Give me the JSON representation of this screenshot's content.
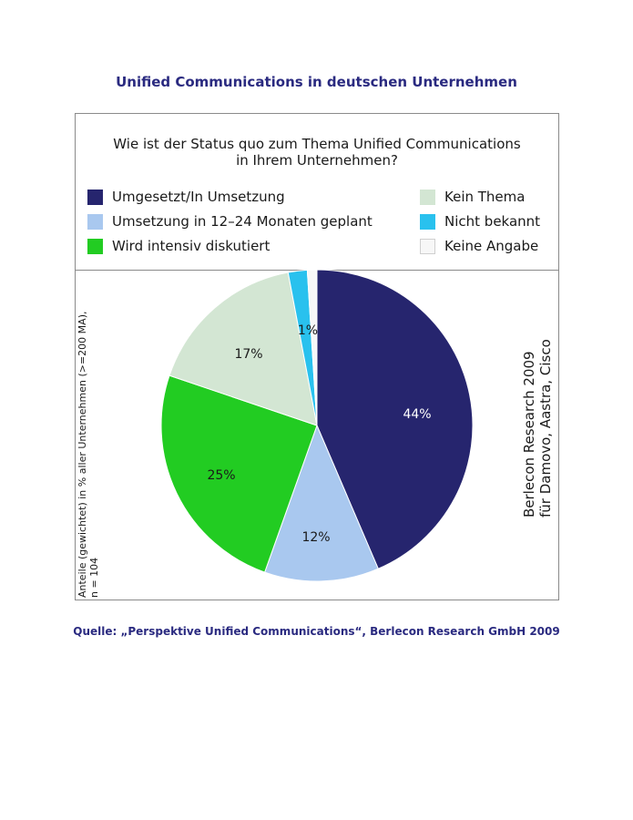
{
  "page": {
    "title": "Unified Communications in deutschen Unternehmen",
    "source": "Quelle: „Perspektive Unified Communications“, Berlecon Research GmbH 2009"
  },
  "chart_data": {
    "type": "pie",
    "title_line1": "Wie ist der Status quo zum Thema Unified Communications",
    "title_line2": "in Ihrem Unternehmen?",
    "y_label_line1": "Anteile (gewichtet) in % aller Unternehmen (>=200 MA),",
    "y_label_line2": "n = 104",
    "side_note_line1": "Berlecon Research 2009",
    "side_note_line2": "für Damovo, Aastra, Cisco",
    "legend_position": "top",
    "slices": [
      {
        "label": "Umgesetzt/In Umsetzung",
        "value": 44,
        "value_label": "44%",
        "color": "#26256e",
        "label_color": "#ffffff"
      },
      {
        "label": "Umsetzung in 12–24 Monaten geplant",
        "value": 12,
        "value_label": "12%",
        "color": "#a9c8ef",
        "label_color": "#1a1a1a"
      },
      {
        "label": "Wird intensiv diskutiert",
        "value": 25,
        "value_label": "25%",
        "color": "#22cc22",
        "label_color": "#1a1a1a"
      },
      {
        "label": "Kein Thema",
        "value": 17,
        "value_label": "17%",
        "color": "#d3e6d3",
        "label_color": "#1a1a1a"
      },
      {
        "label": "Nicht bekannt",
        "value": 2,
        "value_label": "",
        "color": "#29c1ee",
        "label_color": "#1a1a1a"
      },
      {
        "label": "Keine Angabe",
        "value": 1,
        "value_label": "1%",
        "color": "#f7f7f7",
        "label_color": "#1a1a1a"
      }
    ]
  }
}
